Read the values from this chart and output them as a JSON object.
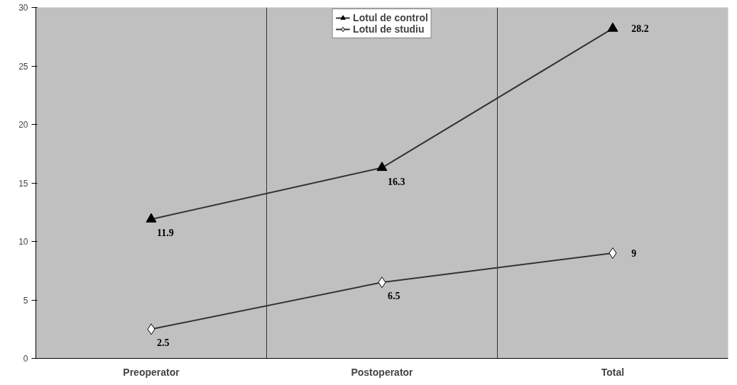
{
  "chart_data": {
    "type": "line",
    "categories": [
      "Preoperator",
      "Postoperator",
      "Total"
    ],
    "series": [
      {
        "name": "Lotul de control",
        "color": "#333333",
        "marker": "triangle",
        "values": [
          11.9,
          16.3,
          28.2
        ]
      },
      {
        "name": "Lotul de studiu",
        "color": "#333333",
        "marker": "diamond",
        "values": [
          2.5,
          6.5,
          9
        ]
      }
    ],
    "ylim": [
      0,
      30
    ],
    "yticks": [
      0,
      5,
      10,
      15,
      20,
      25,
      30
    ],
    "grid": "x",
    "legend": "top",
    "data_labels": true,
    "line_style": "solid"
  }
}
